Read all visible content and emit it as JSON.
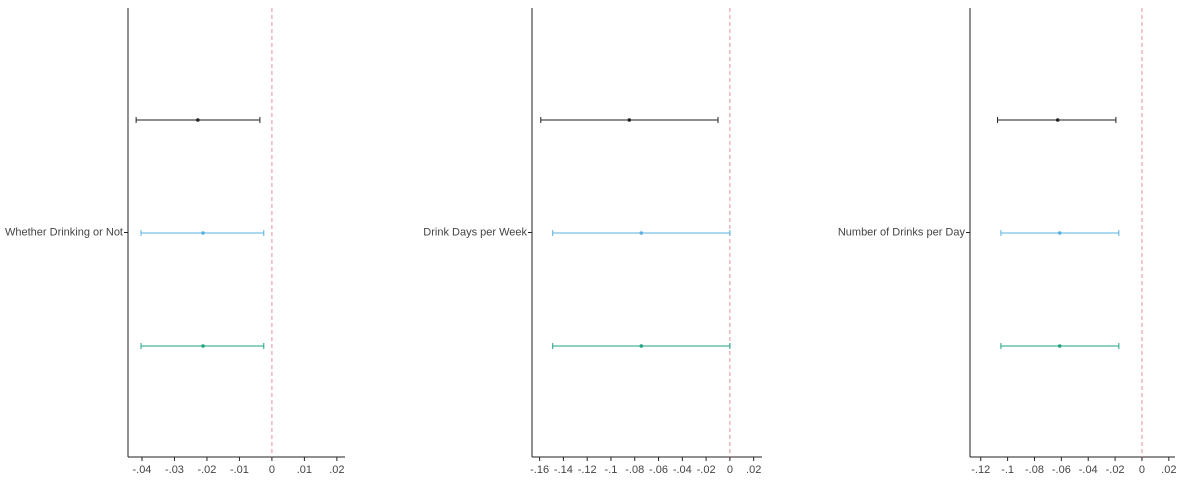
{
  "chart_data": [
    {
      "type": "coefplot",
      "category": "Whether Drinking or Not",
      "xlim": [
        -0.0443,
        0.0225
      ],
      "xticks": [
        {
          "value": -0.04,
          "label": "-.04"
        },
        {
          "value": -0.03,
          "label": "-.03"
        },
        {
          "value": -0.02,
          "label": "-.02"
        },
        {
          "value": -0.01,
          "label": "-.01"
        },
        0,
        {
          "value": 0.01,
          "label": ".01"
        },
        {
          "value": 0.02,
          "label": ".02"
        }
      ],
      "refline": 0,
      "refline_color": "#e8909c",
      "colors": [
        "#222222",
        "#5ab0e0",
        "#1fa383"
      ],
      "values": [
        -0.0228,
        -0.0212,
        -0.0212
      ],
      "lower": [
        -0.0418,
        -0.0403,
        -0.0403
      ],
      "upper": [
        -0.0037,
        -0.0025,
        -0.0025
      ]
    },
    {
      "type": "coefplot",
      "category": "Drink Days per Week",
      "xlim": [
        -0.1664,
        0.027
      ],
      "xticks": [
        {
          "value": -0.16,
          "label": "-.16"
        },
        {
          "value": -0.14,
          "label": "-.14"
        },
        {
          "value": -0.12,
          "label": "-.12"
        },
        {
          "value": -0.1,
          "label": "-.1"
        },
        {
          "value": -0.08,
          "label": "-.08"
        },
        {
          "value": -0.06,
          "label": "-.06"
        },
        {
          "value": -0.04,
          "label": "-.04"
        },
        {
          "value": -0.02,
          "label": "-.02"
        },
        0,
        {
          "value": 0.02,
          "label": ".02"
        }
      ],
      "refline": 0,
      "refline_color": "#e8909c",
      "colors": [
        "#222222",
        "#5ab0e0",
        "#1fa383"
      ],
      "values": [
        -0.0846,
        -0.0745,
        -0.0745
      ],
      "lower": [
        -0.159,
        -0.149,
        -0.149
      ],
      "upper": [
        -0.01,
        0.0,
        0.0
      ]
    },
    {
      "type": "coefplot",
      "category": "Number of Drinks per Day",
      "xlim": [
        -0.128,
        0.0246
      ],
      "xticks": [
        {
          "value": -0.12,
          "label": "-.12"
        },
        {
          "value": -0.1,
          "label": "-.1"
        },
        {
          "value": -0.08,
          "label": "-.08"
        },
        {
          "value": -0.06,
          "label": "-.06"
        },
        {
          "value": -0.04,
          "label": "-.04"
        },
        {
          "value": -0.02,
          "label": "-.02"
        },
        0,
        {
          "value": 0.02,
          "label": ".02"
        }
      ],
      "refline": 0,
      "refline_color": "#e8909c",
      "colors": [
        "#222222",
        "#5ab0e0",
        "#1fa383"
      ],
      "values": [
        -0.0627,
        -0.0612,
        -0.0612
      ],
      "lower": [
        -0.1075,
        -0.105,
        -0.105
      ],
      "upper": [
        -0.0194,
        -0.0172,
        -0.0172
      ]
    }
  ]
}
